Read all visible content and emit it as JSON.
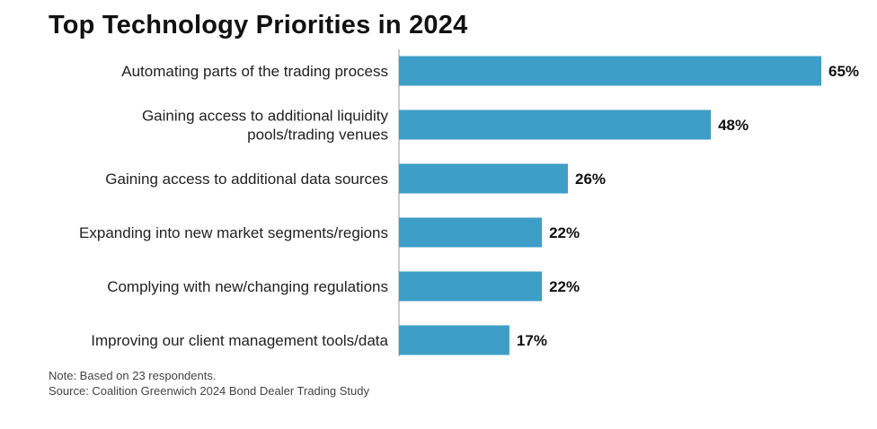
{
  "chart_data": {
    "type": "bar",
    "orientation": "horizontal",
    "title": "Top Technology Priorities in 2024",
    "categories": [
      [
        "Automating parts of the trading process"
      ],
      [
        "Gaining access to additional liquidity",
        "pools/trading venues"
      ],
      [
        "Gaining access to additional data sources"
      ],
      [
        "Expanding into new market segments/regions"
      ],
      [
        "Complying with new/changing regulations"
      ],
      [
        "Improving our client management tools/data"
      ]
    ],
    "values": [
      65,
      48,
      26,
      22,
      22,
      17
    ],
    "value_labels": [
      "65%",
      "48%",
      "26%",
      "22%",
      "22%",
      "17%"
    ],
    "xlim": [
      0,
      65
    ],
    "bar_color": "#3d9ec8",
    "grid": false
  },
  "footnotes": {
    "note": "Note: Based on 23 respondents.",
    "source": "Source: Coalition Greenwich 2024 Bond Dealer Trading Study"
  }
}
